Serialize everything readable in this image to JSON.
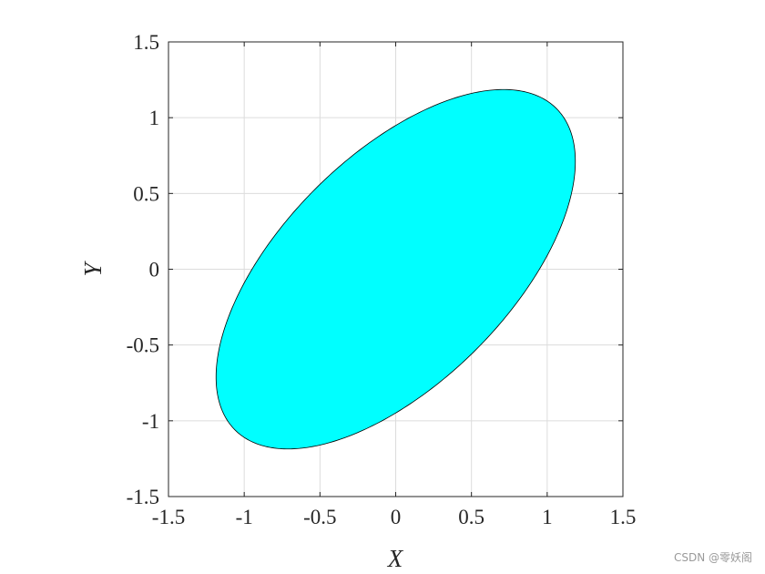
{
  "chart_data": {
    "type": "area",
    "shape": "filled-ellipse",
    "center": [
      0,
      0
    ],
    "semi_major": 1.5,
    "semi_minor": 0.75,
    "rotation_deg": 45,
    "fill_color": "#00FFFF",
    "edge_color": "#000000",
    "xlabel": "X",
    "ylabel": "Y",
    "xlim": [
      -1.5,
      1.5
    ],
    "ylim": [
      -1.5,
      1.5
    ],
    "xticks": [
      -1.5,
      -1,
      -0.5,
      0,
      0.5,
      1,
      1.5
    ],
    "yticks": [
      -1.5,
      -1,
      -0.5,
      0,
      0.5,
      1,
      1.5
    ],
    "xtick_labels": [
      "-1.5",
      "-1",
      "-0.5",
      "0",
      "0.5",
      "1",
      "1.5"
    ],
    "ytick_labels": [
      "-1.5",
      "-1",
      "-0.5",
      "0",
      "0.5",
      "1",
      "1.5"
    ],
    "grid": true
  },
  "watermark": "CSDN @零妖阁"
}
